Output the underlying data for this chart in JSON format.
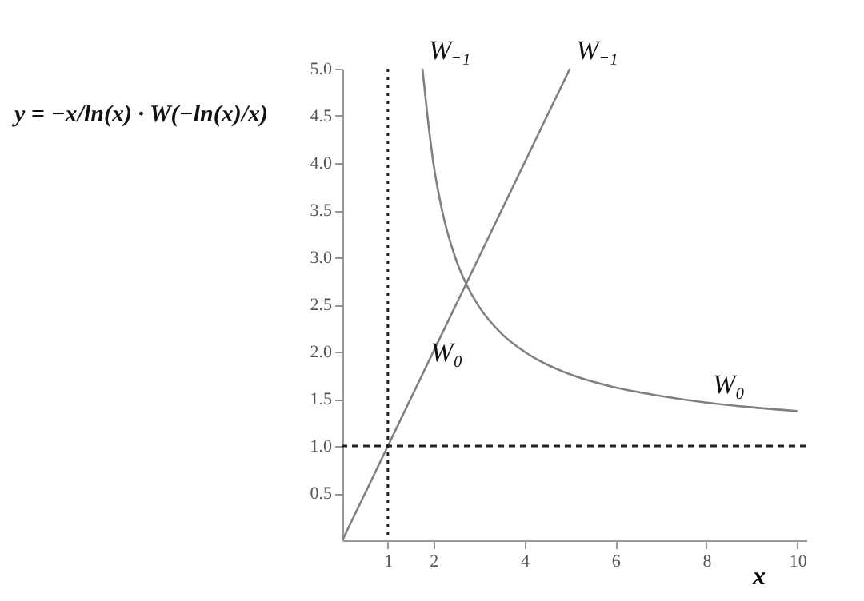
{
  "chart_data": {
    "type": "line",
    "title": "y = −x/ln(x) · W(−ln(x)/x)",
    "xlabel": "x",
    "series": [
      {
        "color": "#808080",
        "x": [
          0,
          5
        ],
        "values": [
          0,
          5
        ]
      },
      {
        "color": "#808080",
        "x": [
          1.76,
          1.87,
          2,
          2.19,
          2.48,
          2.72,
          3,
          3.5,
          4,
          5,
          6,
          7,
          8,
          9,
          10
        ],
        "values": [
          5,
          4.5,
          4,
          3.5,
          3,
          2.72,
          2.48,
          2.19,
          2,
          1.76,
          1.62,
          1.53,
          1.46,
          1.41,
          1.37
        ]
      }
    ],
    "xlim": [
      0,
      10.2
    ],
    "ylim": [
      0,
      5
    ],
    "xticks": [
      1,
      2,
      4,
      6,
      8,
      10
    ],
    "yticks": [
      {
        "value": 0.5,
        "label": "0.5"
      },
      {
        "value": 1,
        "label": "1.0"
      },
      {
        "value": 1.5,
        "label": "1.5"
      },
      {
        "value": 2,
        "label": "2.0"
      },
      {
        "value": 2.5,
        "label": "2.5"
      },
      {
        "value": 3,
        "label": "3.0"
      },
      {
        "value": 3.5,
        "label": "3.5"
      },
      {
        "value": 4,
        "label": "4.0"
      },
      {
        "value": 4.5,
        "label": "4.5"
      },
      {
        "value": 5,
        "label": "5.0"
      }
    ],
    "ref_lines": [
      {
        "axis": "x",
        "value": 1,
        "color": "#222222",
        "line_style": "dotted"
      },
      {
        "axis": "y",
        "value": 1,
        "color": "#222222",
        "line_style": "dashed"
      }
    ],
    "annotations": [
      {
        "text": "W₋₁",
        "x": 1.76,
        "y": 5
      },
      {
        "text": "W₋₁",
        "x": 5,
        "y": 5
      },
      {
        "text": "W₀",
        "x": 1.8,
        "y": 1.8
      },
      {
        "text": "W₀",
        "x": 8,
        "y": 1.46
      }
    ],
    "grid": false,
    "line_style": "solid",
    "marker": "none"
  }
}
